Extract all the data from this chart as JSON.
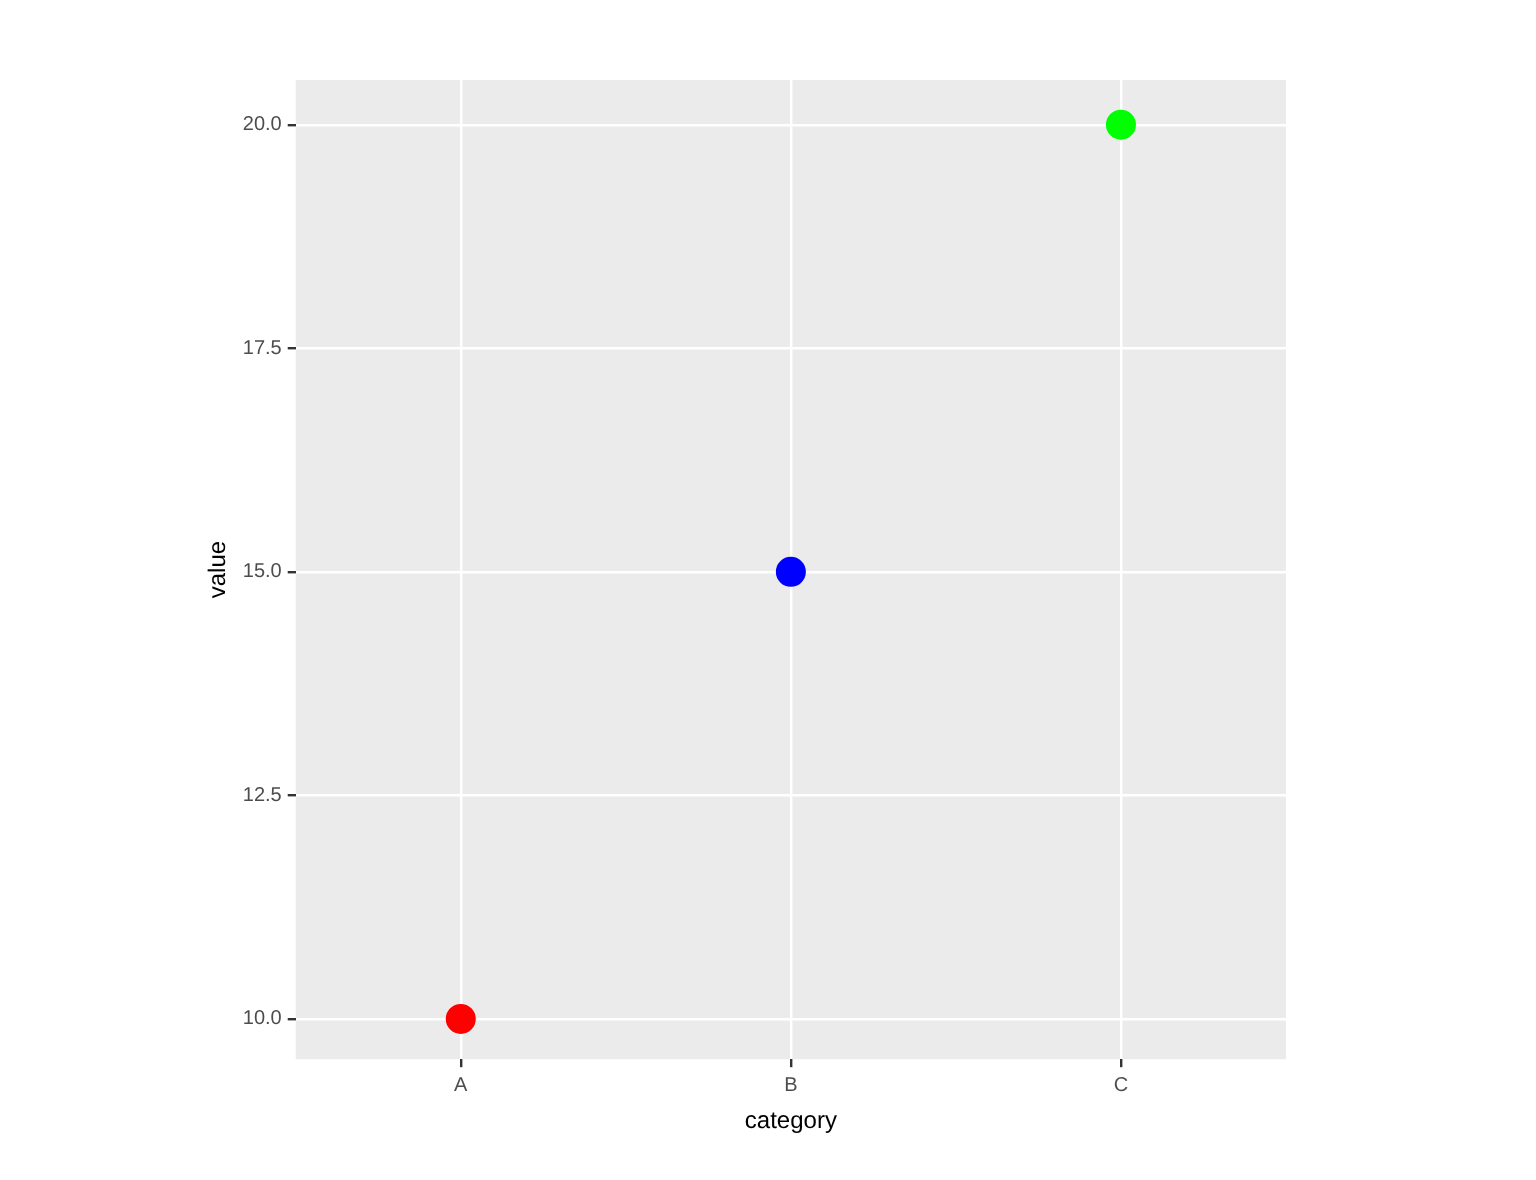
{
  "chart_data": {
    "type": "scatter",
    "categories": [
      "A",
      "B",
      "C"
    ],
    "values": [
      10,
      15,
      20
    ],
    "colors": [
      "#ff0000",
      "#0000ff",
      "#00ff00"
    ],
    "xlabel": "category",
    "ylabel": "value",
    "ylim": [
      9.55,
      20.5
    ],
    "yticks": [
      {
        "value": 10,
        "label": "10.0"
      },
      {
        "value": 12.5,
        "label": "12.5"
      },
      {
        "value": 15,
        "label": "15.0"
      },
      {
        "value": 17.5,
        "label": "17.5"
      },
      {
        "value": 20,
        "label": "20.0"
      }
    ],
    "grid": true,
    "marker": "circle"
  }
}
